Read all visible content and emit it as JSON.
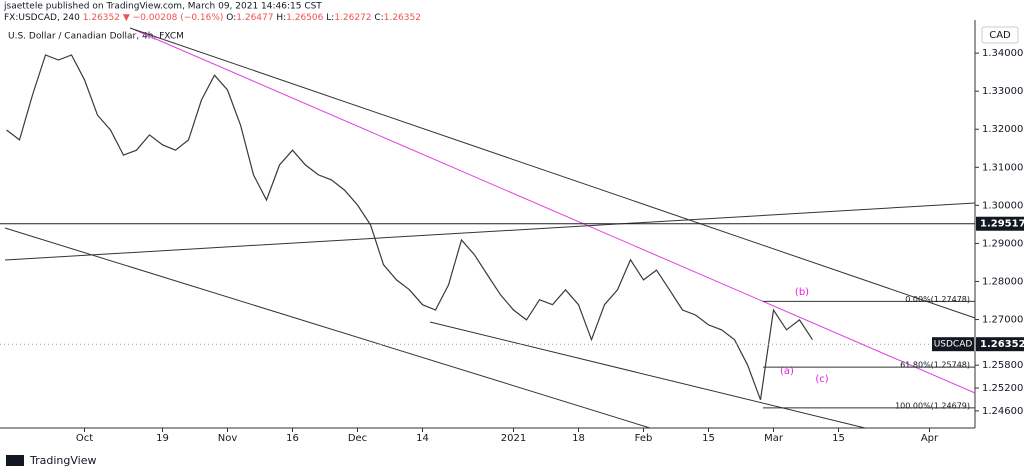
{
  "header": {
    "line1": "jsaettele published on TradingView.com, March 09, 2021 14:46:15 CST",
    "symbol": "FX:USDCAD, 240",
    "last": "1.26352",
    "change": "▼ −0.00208 (−0.16%)",
    "ohlc": [
      [
        "O:",
        "1.26477"
      ],
      [
        "H:",
        "1.26506"
      ],
      [
        "L:",
        "1.26272"
      ],
      [
        "C:",
        "1.26352"
      ]
    ]
  },
  "chart_data": {
    "type": "line",
    "title": "U.S. Dollar / Canadian Dollar, 4h, FXCM",
    "currency": "CAD",
    "categories": [
      null,
      null,
      null,
      null,
      null,
      null,
      "Oct",
      null,
      null,
      null,
      null,
      null,
      "19",
      null,
      null,
      null,
      null,
      "Nov",
      null,
      null,
      null,
      null,
      "16",
      null,
      null,
      null,
      null,
      "Dec",
      null,
      null,
      null,
      null,
      "14",
      null,
      null,
      null,
      null,
      null,
      null,
      "2021",
      null,
      null,
      null,
      null,
      "18",
      null,
      null,
      null,
      null,
      "Feb",
      null,
      null,
      null,
      null,
      "15",
      null,
      null,
      null,
      null,
      "Mar",
      null,
      null,
      null,
      null,
      "15",
      null,
      null,
      null,
      null,
      null,
      null,
      "Apr",
      null,
      null,
      null
    ],
    "series": [
      {
        "name": "USDCAD",
        "color": "#3a3a3a",
        "values": [
          1.3198,
          1.3172,
          1.329,
          1.3395,
          1.3382,
          1.3395,
          1.333,
          1.3237,
          1.3198,
          1.3132,
          1.3145,
          1.3185,
          1.3159,
          1.3145,
          1.3172,
          1.3277,
          1.3342,
          1.3303,
          1.3211,
          1.308,
          1.3014,
          1.3106,
          1.3145,
          1.3106,
          1.308,
          1.3067,
          1.304,
          1.3001,
          1.2949,
          1.2844,
          1.2804,
          1.2778,
          1.2739,
          1.2725,
          1.2791,
          1.2909,
          1.287,
          1.2817,
          1.2765,
          1.2725,
          1.2699,
          1.2752,
          1.2739,
          1.2778,
          1.2739,
          1.2647,
          1.2739,
          1.2778,
          1.2857,
          1.2804,
          1.283,
          1.2778,
          1.2725,
          1.2712,
          1.2686,
          1.2673,
          1.2647,
          1.2581,
          1.2489,
          1.2725,
          1.2673,
          1.2699,
          1.2647,
          null,
          null,
          null,
          null,
          null,
          null,
          null,
          null,
          null,
          null,
          null,
          null
        ]
      }
    ],
    "last_price": 1.26352,
    "hline": 1.29517,
    "fib_levels": [
      {
        "value": 1.27478,
        "label": "0.00%(1.27478)"
      },
      {
        "value": 1.25748,
        "label": "61.80%(1.25748)"
      },
      {
        "value": 1.24679,
        "label": "100.00%(1.24679)"
      }
    ],
    "annotations": [
      "(a)",
      "(b)",
      "(c)"
    ],
    "ylim": [
      1.2415,
      1.3487
    ],
    "yticks": [
      {
        "value": 1.34,
        "label": "1.34000"
      },
      {
        "value": 1.33,
        "label": "1.33000"
      },
      {
        "value": 1.32,
        "label": "1.32000"
      },
      {
        "value": 1.31,
        "label": "1.31000"
      },
      {
        "value": 1.3,
        "label": "1.30000"
      },
      {
        "value": 1.29,
        "label": "1.29000"
      },
      {
        "value": 1.28,
        "label": "1.28000"
      },
      {
        "value": 1.27,
        "label": "1.27000"
      },
      {
        "value": 1.258,
        "label": "1.25800"
      },
      {
        "value": 1.252,
        "label": "1.25200"
      },
      {
        "value": 1.246,
        "label": "1.24600"
      }
    ],
    "grid": false
  },
  "footer": {
    "logo": "TradingView"
  }
}
